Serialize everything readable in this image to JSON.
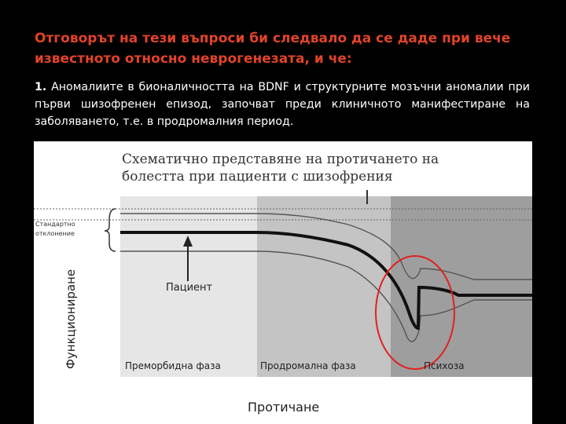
{
  "slide": {
    "heading": "Отговорът на тези въпроси би следвало да се даде при вече известното относно неврогенезата, и че:",
    "point_number": "1.",
    "point_text": "Аномалиите в бионаличността на BDNF и структурните мозъчни аномалии при първи шизофренен епизод, започват преди клиничното манифестиране на заболяването, т.е. в продромалния период."
  },
  "figure": {
    "title_line1": "Схематично представяне на протичането на",
    "title_line2": "болестта при пациенти с шизофрения",
    "sd_label_line1": "Стандартно",
    "sd_label_line2": "отклонение",
    "patient_label": "Пациент",
    "y_axis_label": "Функциониране",
    "x_axis_label": "Протичане",
    "phases": [
      {
        "label": "Преморбидна фаза",
        "color": "#e6e6e6"
      },
      {
        "label": "Продромална фаза",
        "color": "#c4c4c4"
      },
      {
        "label": "Психоза",
        "color": "#9e9e9e"
      }
    ],
    "highlight_color": "#e02020"
  }
}
